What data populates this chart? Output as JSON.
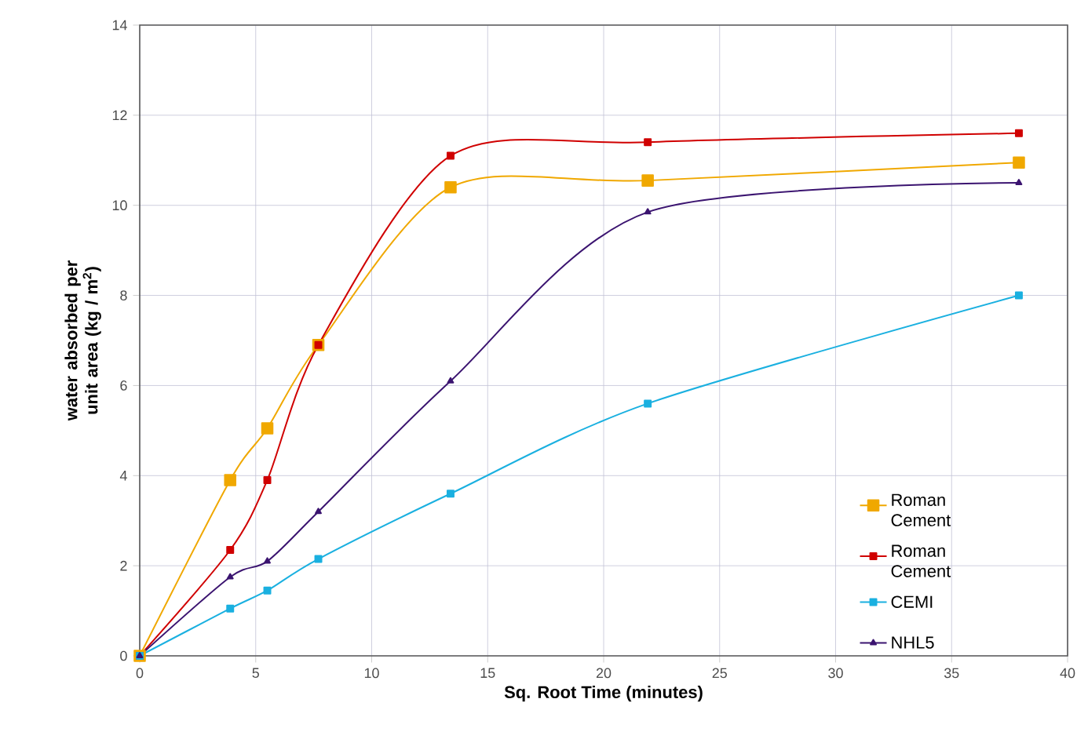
{
  "chart_data": {
    "type": "line",
    "xlabel": "Sq. Root Time (minutes)",
    "ylabel": "water absorbed per unit area (kg / m$^{2}$)",
    "xlim": [
      0,
      40
    ],
    "ylim": [
      0,
      14
    ],
    "xticks": [
      0,
      5,
      10,
      15,
      20,
      25,
      30,
      35,
      40
    ],
    "yticks": [
      0,
      2,
      4,
      6,
      8,
      10,
      12,
      14
    ],
    "grid": true,
    "legend": "right",
    "series": [
      {
        "name": "Roman Cement",
        "color": "#f0a800",
        "marker": "square",
        "x": [
          0,
          3.9,
          5.5,
          7.7,
          13.4,
          21.9,
          37.9
        ],
        "values": [
          0,
          3.9,
          5.05,
          6.9,
          10.4,
          10.55,
          10.95
        ]
      },
      {
        "name": "Roman Cement",
        "color": "#d00000",
        "marker": "square",
        "x": [
          0,
          3.9,
          5.5,
          7.7,
          13.4,
          21.9,
          37.9
        ],
        "values": [
          0,
          2.35,
          3.9,
          6.9,
          11.1,
          11.4,
          11.6
        ]
      },
      {
        "name": "CEMI",
        "color": "#1ab0e0",
        "marker": "square",
        "x": [
          0,
          3.9,
          5.5,
          7.7,
          13.4,
          21.9,
          37.9
        ],
        "values": [
          0,
          1.05,
          1.45,
          2.15,
          3.6,
          5.6,
          8.0
        ]
      },
      {
        "name": "NHL5",
        "color": "#3b1470",
        "marker": "triangle",
        "x": [
          0,
          3.9,
          5.5,
          7.7,
          13.4,
          21.9,
          37.9
        ],
        "values": [
          0,
          1.75,
          2.1,
          3.2,
          6.1,
          9.85,
          10.5
        ]
      }
    ]
  }
}
